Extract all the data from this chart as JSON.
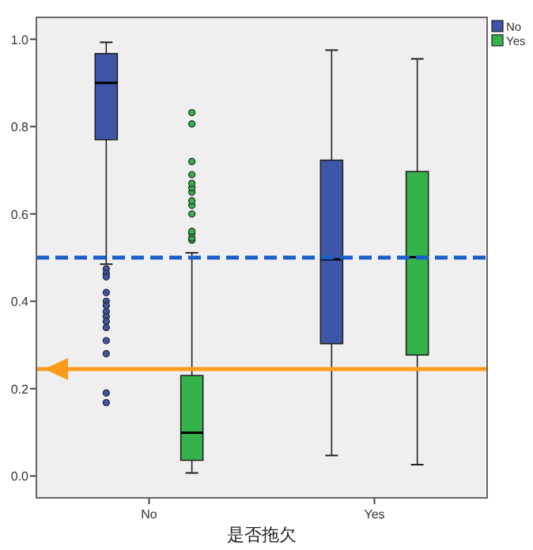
{
  "chart_data": {
    "type": "box",
    "xlabel": "是否拖欠",
    "categories": [
      "No",
      "Yes"
    ],
    "series": [
      {
        "name": "No",
        "color": "#3f56a8",
        "boxes": [
          {
            "low": 0.485,
            "q1": 0.77,
            "median": 0.9,
            "q3": 0.967,
            "high": 0.993,
            "outliers": [
              0.474,
              0.464,
              0.456,
              0.42,
              0.4,
              0.39,
              0.376,
              0.365,
              0.354,
              0.34,
              0.31,
              0.28,
              0.19,
              0.168
            ]
          },
          {
            "low": 0.047,
            "q1": 0.303,
            "median": 0.496,
            "q3": 0.723,
            "high": 0.975
          }
        ]
      },
      {
        "name": "Yes",
        "color": "#33b34a",
        "boxes": [
          {
            "low": 0.007,
            "q1": 0.036,
            "median": 0.099,
            "q3": 0.23,
            "high": 0.511,
            "outliers": [
              0.54,
              0.545,
              0.555,
              0.56,
              0.6,
              0.62,
              0.63,
              0.65,
              0.66,
              0.67,
              0.69,
              0.72,
              0.806,
              0.832
            ]
          },
          {
            "low": 0.026,
            "q1": 0.277,
            "median": 0.501,
            "q3": 0.697,
            "high": 0.955
          }
        ]
      }
    ],
    "ylim": [
      -0.05,
      1.05
    ],
    "yticks": [
      {
        "value": 0,
        "label": "0.0"
      },
      {
        "value": 0.2,
        "label": "0.2"
      },
      {
        "value": 0.4,
        "label": "0.4"
      },
      {
        "value": 0.6,
        "label": "0.6"
      },
      {
        "value": 0.8,
        "label": "0.8"
      },
      {
        "value": 1,
        "label": "1.0"
      }
    ],
    "ref_lines": [
      {
        "axis": "y",
        "value": 0.5,
        "color": "#1a5fc8",
        "line_style": "dashed"
      },
      {
        "axis": "y",
        "value": 0.245,
        "color": "#ff9a1a",
        "line_style": "solid"
      }
    ],
    "legend": "top right"
  }
}
